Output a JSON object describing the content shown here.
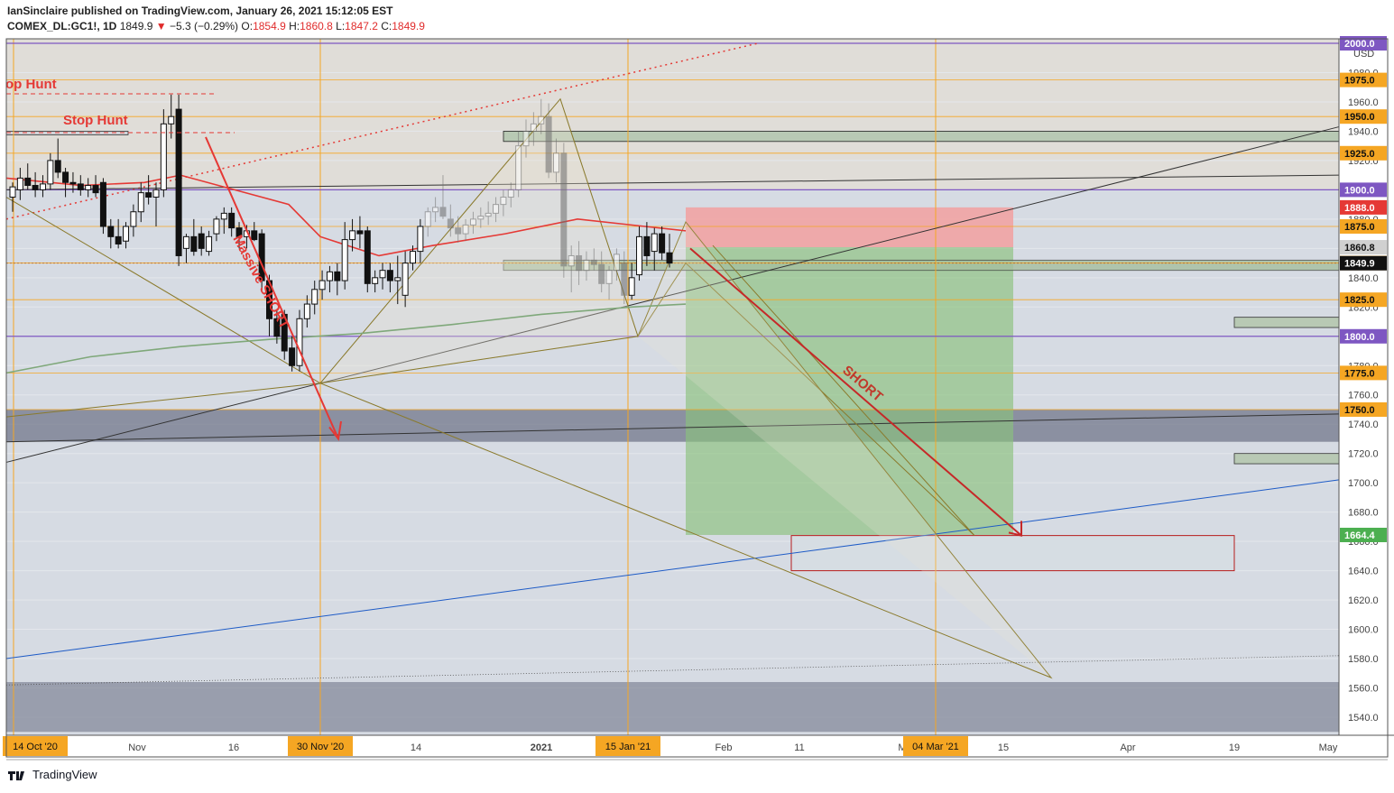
{
  "header": {
    "published_line": "IanSinclaire published on TradingView.com, January 26, 2021 15:12:05 EST",
    "symbol": "COMEX_DL:GC1!, 1D",
    "last": "1849.9",
    "change": "−5.3 (−0.29%)",
    "open_label": "O:",
    "open": "1854.9",
    "high_label": "H:",
    "high": "1860.8",
    "low_label": "L:",
    "low": "1847.2",
    "close_label": "C:",
    "close": "1849.9"
  },
  "footer": {
    "brand": "TradingView"
  },
  "colors": {
    "background": "#d5dae2",
    "grid": "#e6e9ef",
    "orange": "#f5a623",
    "purple": "#7e57c2",
    "red": "#e53935",
    "green_zone": "#8bc17c",
    "red_zone": "#f2a0a0",
    "blue_line": "#1e5bc6"
  },
  "chart_data": {
    "type": "candlestick",
    "currency": "USD",
    "ylim": [
      1530,
      2000
    ],
    "y_ticks": [
      1540,
      1560,
      1580,
      1600,
      1620,
      1640,
      1660,
      1680,
      1700,
      1720,
      1740,
      1760,
      1780,
      1800,
      1820,
      1840,
      1860,
      1880,
      1900,
      1920,
      1940,
      1960,
      1980,
      2000
    ],
    "x_ticks": [
      "14 Oct '20",
      "Nov",
      "16",
      "30 Nov '20",
      "14",
      "2021",
      "15 Jan '21",
      "Feb",
      "11",
      "M",
      "04 Mar '21",
      "15",
      "Apr",
      "19",
      "May"
    ],
    "highlighted_x_labels": [
      "14 Oct '20",
      "30 Nov '20",
      "15 Jan '21",
      "04 Mar '21"
    ],
    "price_levels": [
      {
        "label": "2000.0",
        "value": 2000.0,
        "kind": "purple"
      },
      {
        "label": "1975.0",
        "value": 1975.0,
        "kind": "orange"
      },
      {
        "label": "1950.0",
        "value": 1950.0,
        "kind": "orange"
      },
      {
        "label": "1925.0",
        "value": 1925.0,
        "kind": "orange"
      },
      {
        "label": "1900.0",
        "value": 1900.0,
        "kind": "purple"
      },
      {
        "label": "1888.0",
        "value": 1888.0,
        "kind": "red"
      },
      {
        "label": "1875.0",
        "value": 1875.0,
        "kind": "orange"
      },
      {
        "label": "1860.8",
        "value": 1860.8,
        "kind": "grey"
      },
      {
        "label": "1850.0",
        "value": 1850.0,
        "kind": "orange"
      },
      {
        "label": "1849.9",
        "value": 1849.9,
        "kind": "black"
      },
      {
        "label": "1825.0",
        "value": 1825.0,
        "kind": "orange"
      },
      {
        "label": "1800.0",
        "value": 1800.0,
        "kind": "purple"
      },
      {
        "label": "1775.0",
        "value": 1775.0,
        "kind": "orange"
      },
      {
        "label": "1750.0",
        "value": 1750.0,
        "kind": "orange"
      },
      {
        "label": "1664.4",
        "value": 1664.4,
        "kind": "green"
      }
    ],
    "annotations": [
      "Stop Hunt",
      "op Hunt",
      "Massive SHORT",
      "SHORT"
    ],
    "short_position": {
      "entry": 1860.8,
      "stop": 1888.0,
      "target": 1664.4
    },
    "candles": [
      {
        "o": 1895,
        "h": 1905,
        "l": 1885,
        "c": 1902
      },
      {
        "o": 1900,
        "h": 1915,
        "l": 1893,
        "c": 1908
      },
      {
        "o": 1908,
        "h": 1918,
        "l": 1900,
        "c": 1903
      },
      {
        "o": 1903,
        "h": 1912,
        "l": 1895,
        "c": 1900
      },
      {
        "o": 1900,
        "h": 1910,
        "l": 1895,
        "c": 1904
      },
      {
        "o": 1904,
        "h": 1925,
        "l": 1900,
        "c": 1920
      },
      {
        "o": 1920,
        "h": 1935,
        "l": 1908,
        "c": 1912
      },
      {
        "o": 1912,
        "h": 1915,
        "l": 1895,
        "c": 1905
      },
      {
        "o": 1905,
        "h": 1912,
        "l": 1898,
        "c": 1904
      },
      {
        "o": 1904,
        "h": 1910,
        "l": 1896,
        "c": 1900
      },
      {
        "o": 1900,
        "h": 1908,
        "l": 1895,
        "c": 1903
      },
      {
        "o": 1903,
        "h": 1910,
        "l": 1895,
        "c": 1898
      },
      {
        "o": 1905,
        "h": 1908,
        "l": 1870,
        "c": 1875
      },
      {
        "o": 1875,
        "h": 1880,
        "l": 1860,
        "c": 1868
      },
      {
        "o": 1868,
        "h": 1880,
        "l": 1860,
        "c": 1863
      },
      {
        "o": 1865,
        "h": 1878,
        "l": 1860,
        "c": 1875
      },
      {
        "o": 1875,
        "h": 1890,
        "l": 1868,
        "c": 1885
      },
      {
        "o": 1885,
        "h": 1905,
        "l": 1878,
        "c": 1898
      },
      {
        "o": 1898,
        "h": 1910,
        "l": 1890,
        "c": 1895
      },
      {
        "o": 1895,
        "h": 1905,
        "l": 1875,
        "c": 1900
      },
      {
        "o": 1900,
        "h": 1955,
        "l": 1895,
        "c": 1945
      },
      {
        "o": 1945,
        "h": 1965,
        "l": 1935,
        "c": 1950
      },
      {
        "o": 1955,
        "h": 1965,
        "l": 1848,
        "c": 1855
      },
      {
        "o": 1860,
        "h": 1870,
        "l": 1850,
        "c": 1868
      },
      {
        "o": 1868,
        "h": 1880,
        "l": 1855,
        "c": 1858
      },
      {
        "o": 1870,
        "h": 1875,
        "l": 1855,
        "c": 1860
      },
      {
        "o": 1858,
        "h": 1872,
        "l": 1855,
        "c": 1868
      },
      {
        "o": 1870,
        "h": 1882,
        "l": 1865,
        "c": 1880
      },
      {
        "o": 1880,
        "h": 1888,
        "l": 1870,
        "c": 1884
      },
      {
        "o": 1884,
        "h": 1888,
        "l": 1868,
        "c": 1874
      },
      {
        "o": 1874,
        "h": 1878,
        "l": 1860,
        "c": 1868
      },
      {
        "o": 1868,
        "h": 1876,
        "l": 1860,
        "c": 1872
      },
      {
        "o": 1872,
        "h": 1878,
        "l": 1865,
        "c": 1866
      },
      {
        "o": 1870,
        "h": 1873,
        "l": 1830,
        "c": 1838
      },
      {
        "o": 1838,
        "h": 1842,
        "l": 1800,
        "c": 1812
      },
      {
        "o": 1812,
        "h": 1818,
        "l": 1795,
        "c": 1800
      },
      {
        "o": 1815,
        "h": 1818,
        "l": 1784,
        "c": 1790
      },
      {
        "o": 1792,
        "h": 1800,
        "l": 1776,
        "c": 1780
      },
      {
        "o": 1780,
        "h": 1818,
        "l": 1776,
        "c": 1812
      },
      {
        "o": 1812,
        "h": 1828,
        "l": 1806,
        "c": 1822
      },
      {
        "o": 1822,
        "h": 1838,
        "l": 1815,
        "c": 1832
      },
      {
        "o": 1832,
        "h": 1845,
        "l": 1825,
        "c": 1838
      },
      {
        "o": 1838,
        "h": 1848,
        "l": 1830,
        "c": 1844
      },
      {
        "o": 1844,
        "h": 1850,
        "l": 1828,
        "c": 1838
      },
      {
        "o": 1838,
        "h": 1878,
        "l": 1832,
        "c": 1866
      },
      {
        "o": 1866,
        "h": 1880,
        "l": 1858,
        "c": 1872
      },
      {
        "o": 1872,
        "h": 1882,
        "l": 1860,
        "c": 1870
      },
      {
        "o": 1872,
        "h": 1875,
        "l": 1830,
        "c": 1836
      },
      {
        "o": 1836,
        "h": 1845,
        "l": 1830,
        "c": 1840
      },
      {
        "o": 1840,
        "h": 1850,
        "l": 1832,
        "c": 1845
      },
      {
        "o": 1845,
        "h": 1850,
        "l": 1830,
        "c": 1838
      },
      {
        "o": 1838,
        "h": 1855,
        "l": 1822,
        "c": 1840
      },
      {
        "o": 1828,
        "h": 1858,
        "l": 1820,
        "c": 1850
      },
      {
        "o": 1850,
        "h": 1862,
        "l": 1845,
        "c": 1858
      },
      {
        "o": 1858,
        "h": 1880,
        "l": 1850,
        "c": 1875
      },
      {
        "o": 1875,
        "h": 1888,
        "l": 1868,
        "c": 1885
      },
      {
        "o": 1885,
        "h": 1895,
        "l": 1878,
        "c": 1888
      },
      {
        "o": 1888,
        "h": 1910,
        "l": 1880,
        "c": 1882
      },
      {
        "o": 1880,
        "h": 1890,
        "l": 1868,
        "c": 1874
      },
      {
        "o": 1874,
        "h": 1882,
        "l": 1864,
        "c": 1870
      },
      {
        "o": 1870,
        "h": 1880,
        "l": 1865,
        "c": 1876
      },
      {
        "o": 1876,
        "h": 1885,
        "l": 1870,
        "c": 1880
      },
      {
        "o": 1880,
        "h": 1888,
        "l": 1874,
        "c": 1882
      },
      {
        "o": 1882,
        "h": 1892,
        "l": 1876,
        "c": 1884
      },
      {
        "o": 1884,
        "h": 1895,
        "l": 1878,
        "c": 1890
      },
      {
        "o": 1890,
        "h": 1900,
        "l": 1882,
        "c": 1895
      },
      {
        "o": 1895,
        "h": 1905,
        "l": 1888,
        "c": 1900
      },
      {
        "o": 1900,
        "h": 1940,
        "l": 1895,
        "c": 1930
      },
      {
        "o": 1930,
        "h": 1948,
        "l": 1922,
        "c": 1940
      },
      {
        "o": 1940,
        "h": 1953,
        "l": 1930,
        "c": 1945
      },
      {
        "o": 1945,
        "h": 1962,
        "l": 1938,
        "c": 1950
      },
      {
        "o": 1950,
        "h": 1959,
        "l": 1908,
        "c": 1912
      },
      {
        "o": 1912,
        "h": 1935,
        "l": 1905,
        "c": 1925
      },
      {
        "o": 1925,
        "h": 1932,
        "l": 1840,
        "c": 1848
      },
      {
        "o": 1848,
        "h": 1862,
        "l": 1830,
        "c": 1855
      },
      {
        "o": 1855,
        "h": 1865,
        "l": 1835,
        "c": 1845
      },
      {
        "o": 1845,
        "h": 1858,
        "l": 1838,
        "c": 1852
      },
      {
        "o": 1852,
        "h": 1860,
        "l": 1845,
        "c": 1849
      },
      {
        "o": 1849,
        "h": 1858,
        "l": 1830,
        "c": 1836
      },
      {
        "o": 1836,
        "h": 1848,
        "l": 1825,
        "c": 1845
      },
      {
        "o": 1845,
        "h": 1860,
        "l": 1838,
        "c": 1856
      },
      {
        "o": 1850,
        "h": 1858,
        "l": 1822,
        "c": 1828
      },
      {
        "o": 1828,
        "h": 1850,
        "l": 1825,
        "c": 1840
      },
      {
        "o": 1842,
        "h": 1875,
        "l": 1838,
        "c": 1868
      },
      {
        "o": 1868,
        "h": 1878,
        "l": 1848,
        "c": 1855
      },
      {
        "o": 1858,
        "h": 1874,
        "l": 1845,
        "c": 1870
      },
      {
        "o": 1870,
        "h": 1875,
        "l": 1852,
        "c": 1857
      },
      {
        "o": 1857,
        "h": 1870,
        "l": 1847,
        "c": 1850
      }
    ]
  }
}
